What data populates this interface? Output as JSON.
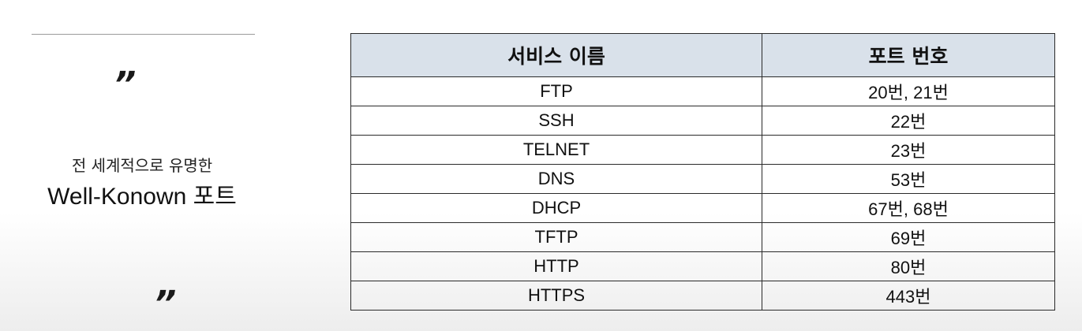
{
  "left_panel": {
    "quote_open": "”",
    "quote_close": "”",
    "subtitle": "전 세계적으로 유명한",
    "title": "Well-Konown 포트"
  },
  "table": {
    "headers": [
      "서비스 이름",
      "포트 번호"
    ],
    "rows": [
      {
        "service": "FTP",
        "port": "20번, 21번"
      },
      {
        "service": "SSH",
        "port": "22번"
      },
      {
        "service": "TELNET",
        "port": "23번"
      },
      {
        "service": "DNS",
        "port": "53번"
      },
      {
        "service": "DHCP",
        "port": "67번, 68번"
      },
      {
        "service": "TFTP",
        "port": "69번"
      },
      {
        "service": "HTTP",
        "port": "80번"
      },
      {
        "service": "HTTPS",
        "port": "443번"
      }
    ]
  }
}
